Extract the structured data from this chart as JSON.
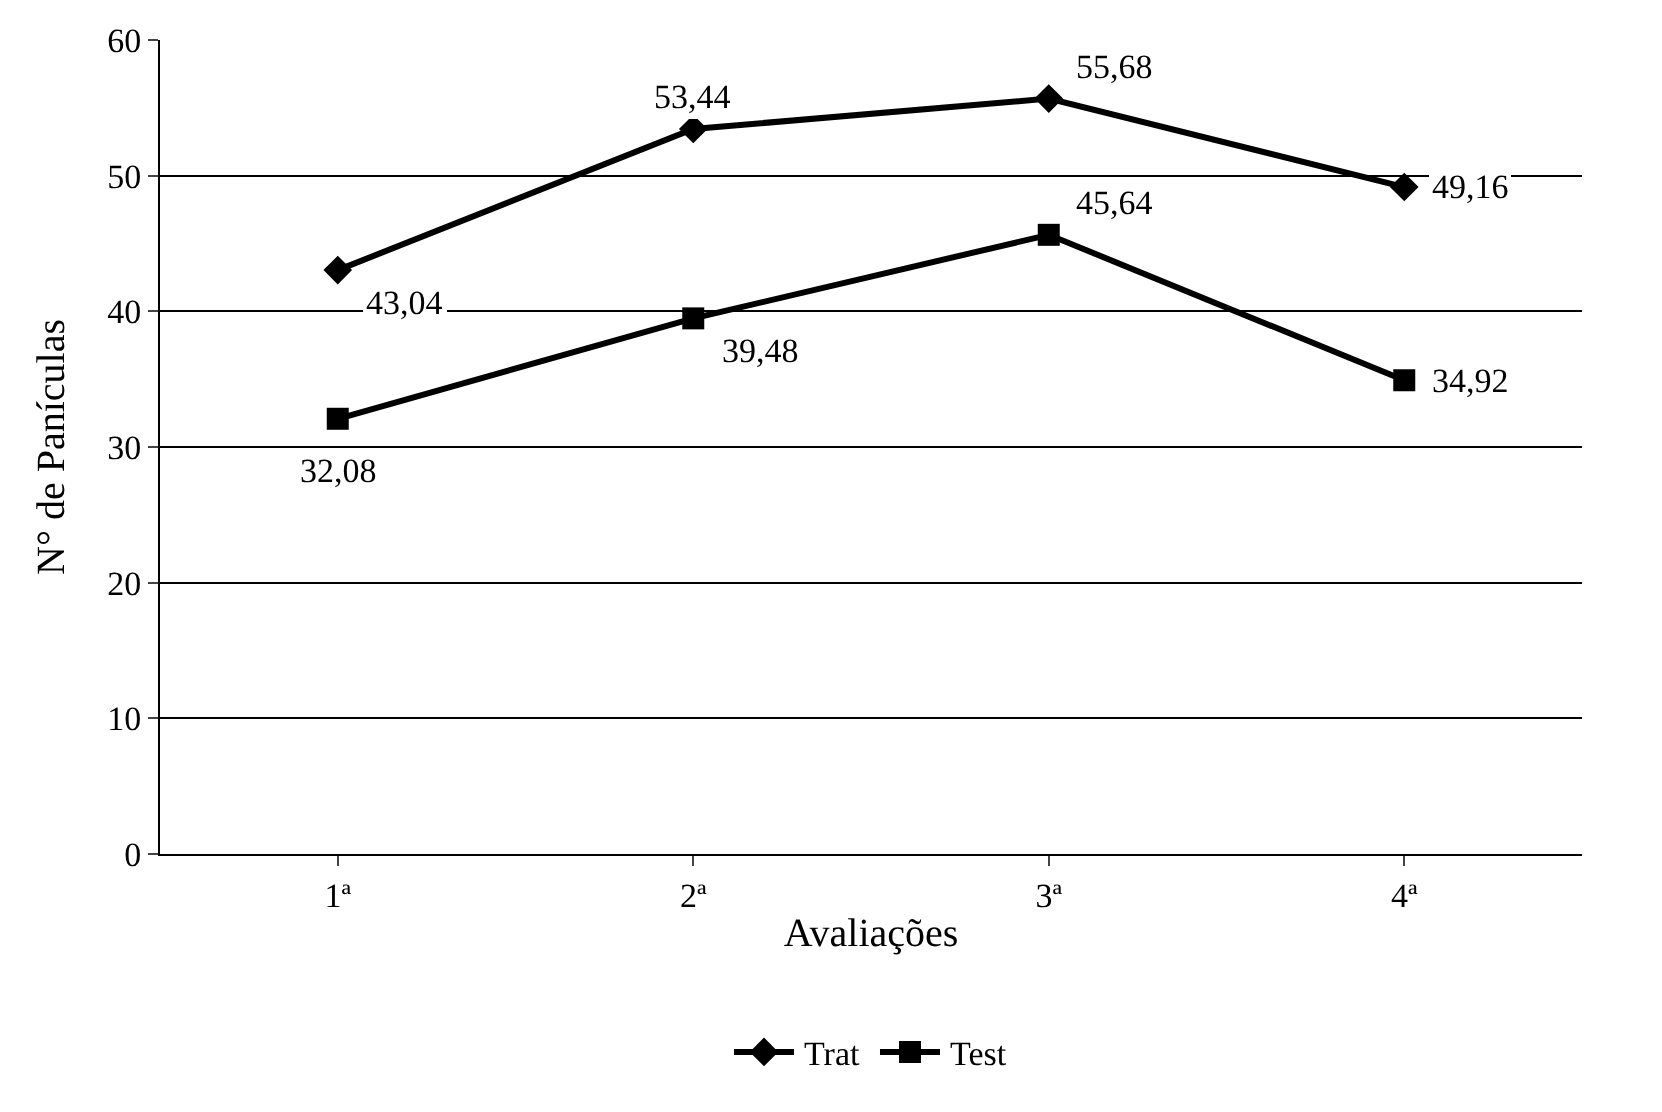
{
  "chart_data": {
    "type": "line",
    "ylabel": "N° de Panículas",
    "xlabel": "Avaliações",
    "categories": [
      "1ª",
      "2ª",
      "3ª",
      "4ª"
    ],
    "series": [
      {
        "name": "Trat",
        "color": "#000000",
        "marker": "diamond",
        "values": [
          43.04,
          53.44,
          55.68,
          49.16
        ],
        "value_labels": [
          "43,04",
          "53,44",
          "55,68",
          "49,16"
        ]
      },
      {
        "name": "Test",
        "color": "#000000",
        "marker": "square",
        "values": [
          32.08,
          39.48,
          45.64,
          34.92
        ],
        "value_labels": [
          "32,08",
          "39,48",
          "45,64",
          "34,92"
        ]
      }
    ],
    "ylim": [
      0,
      60
    ],
    "yticks": [
      0,
      10,
      20,
      30,
      40,
      50,
      60
    ],
    "grid": "y",
    "legend": "bottom",
    "line_style": "solid"
  }
}
